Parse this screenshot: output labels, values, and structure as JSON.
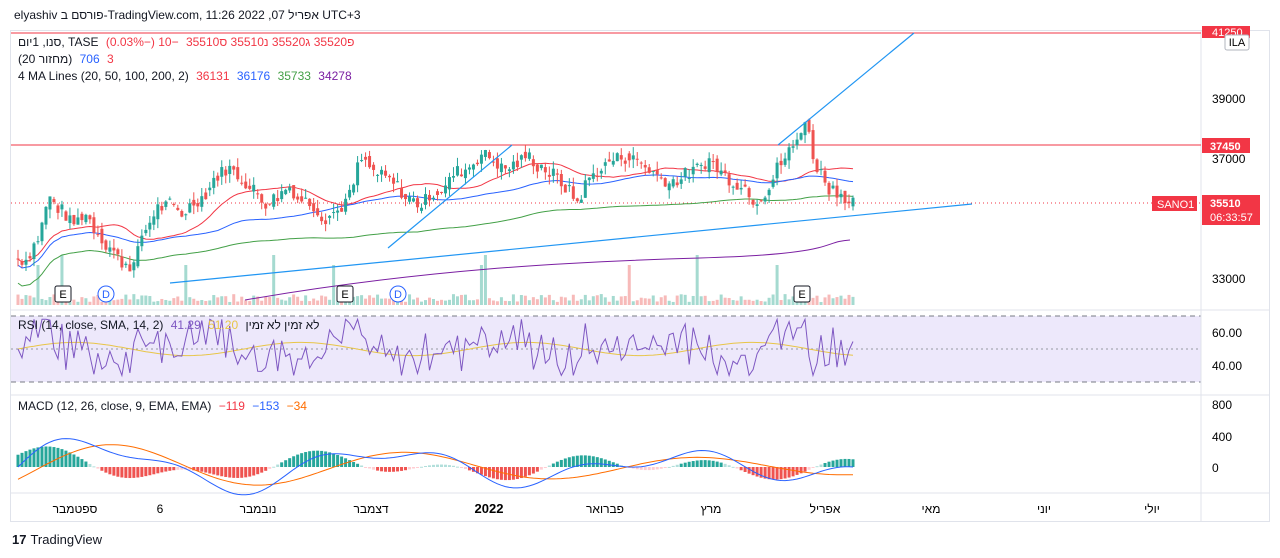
{
  "header": {
    "title": "elyashiv פורסם ב-TradingView.com, 11:26 אפריל 07, 2022 UTC+3"
  },
  "legend": {
    "symbol": "סנו, 1יום, TASE",
    "ohlc": "פ35520 ג35520 נ35510 ס35510",
    "change": "−10 (−0.03%)",
    "volume_label": "(20 מחזור)",
    "volume_values": [
      "3",
      "706"
    ],
    "ma_label": "4 MA Lines (20, 50, 100, 200, 2)",
    "ma_values": [
      "36131",
      "36176",
      "35733",
      "34278"
    ],
    "rsi_label": "RSI (14, close, SMA, 14, 2)",
    "rsi_values": [
      "41.29",
      "51.20"
    ],
    "rsi_na": "לא זמין  לא זמין",
    "macd_label": "MACD (12, 26, close, 9, EMA, EMA)",
    "macd_values": [
      "−119",
      "−153",
      "−34"
    ]
  },
  "price_axis": {
    "ticks": [
      "39000",
      "37000",
      "33000"
    ],
    "top_label": "41250",
    "label_37450": "37450",
    "last_price": "35510",
    "countdown": "06:33:57",
    "symbol_tag": "SANO1",
    "ila": "ILA"
  },
  "rsi_axis": {
    "ticks": [
      "60.00",
      "40.00"
    ]
  },
  "macd_axis": {
    "ticks": [
      "800",
      "400",
      "0"
    ]
  },
  "time_axis": {
    "labels": [
      "ספטמבר",
      "6",
      "נובמבר",
      "דצמבר",
      "2022",
      "פברואר",
      "מרץ",
      "אפריל",
      "מאי",
      "יוני",
      "יולי"
    ]
  },
  "events": {
    "earnings": "E",
    "dividend": "D"
  },
  "footer": {
    "brand": "TradingView",
    "logo": "17"
  },
  "colors": {
    "up": "#26a69a",
    "down": "#ef5350",
    "ma20": "#f23645",
    "ma50": "#2962ff",
    "ma100": "#43a047",
    "ma200": "#7b1fa2",
    "rsi": "#7e57c2",
    "rsi_ma": "#e8c547",
    "macd": "#2962ff",
    "signal": "#ff6d00"
  },
  "chart_data": {
    "type": "candlestick",
    "price_range": [
      32000,
      41500
    ],
    "price_series_approx": [
      33600,
      34300,
      35600,
      35200,
      34800,
      35100,
      34500,
      34000,
      33500,
      33400,
      34600,
      35300,
      35400,
      35100,
      35500,
      35800,
      36400,
      36600,
      36300,
      35900,
      35500,
      35700,
      36000,
      35600,
      35400,
      35000,
      35200,
      35700,
      36900,
      36500,
      36300,
      36000,
      35600,
      35400,
      35800,
      36000,
      36500,
      36700,
      37100,
      36900,
      36600,
      36800,
      37000,
      36700,
      36400,
      36000,
      35500,
      36300,
      36600,
      36900,
      37000,
      36900,
      36600,
      36300,
      36200,
      36400,
      36600,
      36900,
      36500,
      36200,
      36000,
      35600,
      36000,
      36800,
      37300,
      38200,
      36700,
      36000,
      35800,
      35510
    ],
    "rsi_range": [
      30,
      70
    ],
    "macd_range": [
      -200,
      900
    ]
  }
}
